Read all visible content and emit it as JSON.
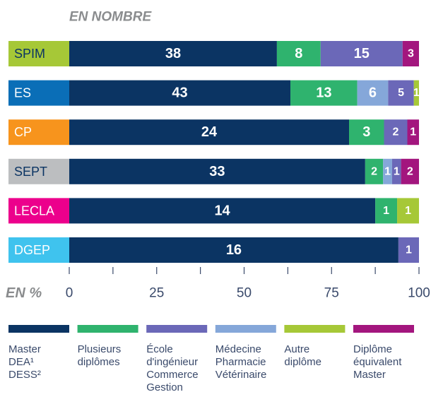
{
  "chart_data": {
    "type": "bar",
    "orientation": "horizontal",
    "stacking": "percent",
    "title": "EN NOMBRE",
    "xlabel": "EN %",
    "categories": [
      "SPIM",
      "ES",
      "CP",
      "SEPT",
      "LECLA",
      "DGEP"
    ],
    "category_colors": [
      "#a6c837",
      "#0a6eb7",
      "#f7941d",
      "#bcbec0",
      "#ec008c",
      "#3fc3ee"
    ],
    "series": [
      {
        "name": "Master DEA¹ DESS²",
        "color": "#0b3463",
        "values": [
          38,
          43,
          24,
          33,
          14,
          16
        ]
      },
      {
        "name": "Plusieurs diplômes",
        "color": "#2fb36e",
        "values": [
          8,
          13,
          3,
          2,
          1,
          null
        ]
      },
      {
        "name": "Médecine Pharmacie Vétérinaire",
        "color": "#85a7d9",
        "values": [
          null,
          6,
          null,
          1,
          null,
          null
        ]
      },
      {
        "name": "École d'ingénieur Commerce Gestion",
        "color": "#6b68b8",
        "values": [
          15,
          5,
          2,
          1,
          null,
          1
        ]
      },
      {
        "name": "Autre diplôme",
        "color": "#a6c837",
        "values": [
          null,
          1,
          null,
          null,
          1,
          null
        ]
      },
      {
        "name": "Diplôme équivalent Master",
        "color": "#a3167e",
        "values": [
          3,
          null,
          1,
          2,
          null,
          null
        ]
      }
    ],
    "xlim": [
      0,
      100
    ],
    "xticks": [
      0,
      25,
      50,
      75,
      100
    ],
    "minor_xticks": [
      12.5,
      37.5,
      62.5,
      87.5
    ]
  }
}
